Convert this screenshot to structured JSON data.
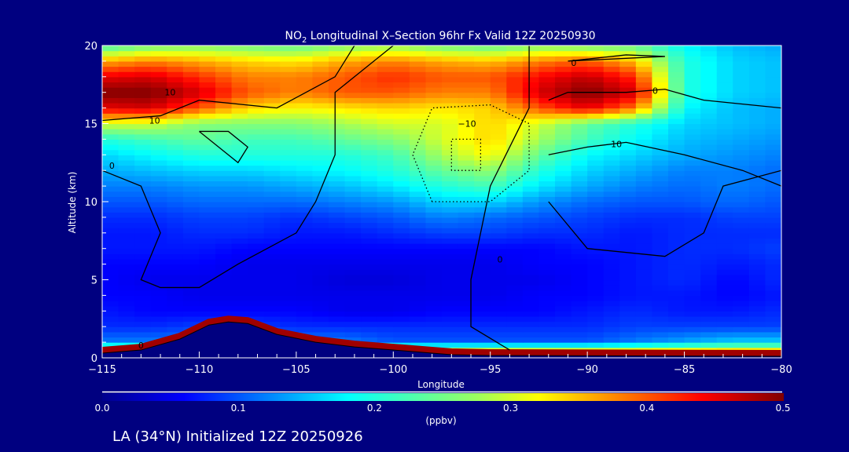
{
  "chart_data": {
    "type": "heatmap",
    "title_main": "NO",
    "title_sub": "2",
    "title_rest": " Longitudinal X–Section 96hr  Fx Valid 12Z 20250930",
    "xlabel": "Longitude",
    "ylabel": "Altitude (km)",
    "xlim": [
      -115,
      -80
    ],
    "ylim": [
      0,
      20
    ],
    "xticks": [
      -115,
      -110,
      -105,
      -100,
      -95,
      -90,
      -85,
      -80
    ],
    "xtick_labels": [
      "−115",
      "−110",
      "−105",
      "−100",
      "−95",
      "−90",
      "−85",
      "−80"
    ],
    "yticks": [
      0,
      5,
      10,
      15,
      20
    ],
    "ytick_labels": [
      "0",
      "5",
      "10",
      "15",
      "20"
    ],
    "x": [
      -115,
      -112.5,
      -110,
      -107.5,
      -105,
      -102.5,
      -100,
      -97.5,
      -95,
      -92.5,
      -90,
      -87.5,
      -85,
      -82.5,
      -80
    ],
    "y": [
      0,
      1,
      2,
      3,
      4,
      5,
      6,
      7,
      8,
      9,
      10,
      11,
      12,
      13,
      14,
      15,
      16,
      17,
      18,
      19,
      20
    ],
    "values": [
      [
        0.5,
        0.5,
        0.5,
        0.5,
        0.5,
        0.5,
        0.5,
        0.5,
        0.5,
        0.5,
        0.5,
        0.5,
        0.5,
        0.5,
        0.5
      ],
      [
        0.12,
        0.12,
        0.12,
        0.12,
        0.12,
        0.12,
        0.1,
        0.1,
        0.1,
        0.1,
        0.1,
        0.12,
        0.14,
        0.16,
        0.16
      ],
      [
        0.08,
        0.08,
        0.09,
        0.09,
        0.08,
        0.08,
        0.08,
        0.08,
        0.08,
        0.08,
        0.08,
        0.09,
        0.09,
        0.09,
        0.09
      ],
      [
        0.07,
        0.06,
        0.06,
        0.06,
        0.06,
        0.05,
        0.05,
        0.06,
        0.06,
        0.06,
        0.07,
        0.08,
        0.07,
        0.07,
        0.08
      ],
      [
        0.06,
        0.06,
        0.05,
        0.05,
        0.05,
        0.05,
        0.05,
        0.05,
        0.05,
        0.06,
        0.06,
        0.07,
        0.07,
        0.06,
        0.07
      ],
      [
        0.06,
        0.05,
        0.05,
        0.05,
        0.05,
        0.04,
        0.04,
        0.05,
        0.05,
        0.05,
        0.06,
        0.07,
        0.08,
        0.06,
        0.08
      ],
      [
        0.06,
        0.06,
        0.06,
        0.05,
        0.05,
        0.05,
        0.05,
        0.05,
        0.05,
        0.06,
        0.06,
        0.07,
        0.08,
        0.07,
        0.08
      ],
      [
        0.07,
        0.07,
        0.07,
        0.06,
        0.06,
        0.06,
        0.06,
        0.06,
        0.06,
        0.06,
        0.07,
        0.07,
        0.08,
        0.08,
        0.09
      ],
      [
        0.07,
        0.07,
        0.08,
        0.08,
        0.07,
        0.07,
        0.08,
        0.09,
        0.09,
        0.08,
        0.08,
        0.07,
        0.08,
        0.08,
        0.08
      ],
      [
        0.08,
        0.08,
        0.09,
        0.09,
        0.08,
        0.09,
        0.1,
        0.12,
        0.11,
        0.1,
        0.09,
        0.08,
        0.08,
        0.09,
        0.09
      ],
      [
        0.1,
        0.1,
        0.11,
        0.11,
        0.11,
        0.12,
        0.13,
        0.16,
        0.16,
        0.13,
        0.11,
        0.1,
        0.1,
        0.11,
        0.1
      ],
      [
        0.12,
        0.12,
        0.13,
        0.13,
        0.14,
        0.15,
        0.17,
        0.2,
        0.22,
        0.17,
        0.14,
        0.12,
        0.11,
        0.12,
        0.11
      ],
      [
        0.14,
        0.15,
        0.16,
        0.16,
        0.17,
        0.18,
        0.2,
        0.24,
        0.27,
        0.2,
        0.16,
        0.14,
        0.12,
        0.12,
        0.11
      ],
      [
        0.16,
        0.18,
        0.2,
        0.2,
        0.2,
        0.2,
        0.22,
        0.28,
        0.32,
        0.24,
        0.18,
        0.16,
        0.14,
        0.13,
        0.12
      ],
      [
        0.2,
        0.22,
        0.24,
        0.22,
        0.22,
        0.24,
        0.26,
        0.3,
        0.34,
        0.28,
        0.22,
        0.18,
        0.15,
        0.14,
        0.13
      ],
      [
        0.3,
        0.3,
        0.26,
        0.26,
        0.26,
        0.28,
        0.3,
        0.3,
        0.34,
        0.3,
        0.24,
        0.2,
        0.16,
        0.15,
        0.14
      ],
      [
        0.45,
        0.46,
        0.4,
        0.34,
        0.32,
        0.33,
        0.34,
        0.33,
        0.34,
        0.4,
        0.45,
        0.38,
        0.18,
        0.15,
        0.14
      ],
      [
        0.5,
        0.5,
        0.46,
        0.4,
        0.38,
        0.4,
        0.4,
        0.38,
        0.38,
        0.46,
        0.5,
        0.46,
        0.2,
        0.16,
        0.15
      ],
      [
        0.45,
        0.46,
        0.42,
        0.38,
        0.38,
        0.4,
        0.42,
        0.4,
        0.4,
        0.44,
        0.47,
        0.42,
        0.2,
        0.16,
        0.15
      ],
      [
        0.36,
        0.38,
        0.36,
        0.34,
        0.33,
        0.36,
        0.38,
        0.36,
        0.35,
        0.38,
        0.4,
        0.35,
        0.2,
        0.16,
        0.15
      ],
      [
        0.22,
        0.25,
        0.26,
        0.25,
        0.24,
        0.26,
        0.27,
        0.25,
        0.24,
        0.26,
        0.25,
        0.24,
        0.18,
        0.15,
        0.14
      ]
    ],
    "terrain": [
      [
        -115,
        0.3
      ],
      [
        -113,
        0.5
      ],
      [
        -111,
        1.2
      ],
      [
        -109.5,
        2.1
      ],
      [
        -108.5,
        2.3
      ],
      [
        -107.5,
        2.2
      ],
      [
        -106,
        1.5
      ],
      [
        -104,
        1.0
      ],
      [
        -102,
        0.7
      ],
      [
        -100,
        0.5
      ],
      [
        -97,
        0.2
      ],
      [
        -95,
        0.15
      ],
      [
        -80,
        0.1
      ]
    ],
    "contours": [
      {
        "level": 0,
        "style": "solid",
        "points": [
          [
            -115,
            12
          ],
          [
            -113,
            11
          ],
          [
            -112,
            8
          ],
          [
            -113,
            5
          ],
          [
            -112,
            4.5
          ],
          [
            -110,
            4.5
          ],
          [
            -108,
            6
          ],
          [
            -105,
            8
          ],
          [
            -104,
            10
          ],
          [
            -103,
            13
          ],
          [
            -103,
            17
          ],
          [
            -101,
            19
          ],
          [
            -100,
            20
          ]
        ]
      },
      {
        "level": 10,
        "style": "solid",
        "points": [
          [
            -115,
            15.2
          ],
          [
            -112,
            15.5
          ],
          [
            -110,
            16.5
          ],
          [
            -106,
            16
          ],
          [
            -103,
            18
          ],
          [
            -102,
            20
          ]
        ]
      },
      {
        "level": 10,
        "style": "solid",
        "points": [
          [
            -110,
            14.5
          ],
          [
            -109,
            13.5
          ],
          [
            -108,
            12.5
          ],
          [
            -107.5,
            13.5
          ],
          [
            -108.5,
            14.5
          ],
          [
            -110,
            14.5
          ]
        ]
      },
      {
        "level": -10,
        "style": "dotted",
        "points": [
          [
            -98,
            10
          ],
          [
            -99,
            13
          ],
          [
            -98,
            16
          ],
          [
            -95,
            16.2
          ],
          [
            -93,
            15
          ],
          [
            -93,
            12
          ],
          [
            -95,
            10
          ],
          [
            -98,
            10
          ]
        ]
      },
      {
        "level": -10,
        "style": "dotted",
        "points": [
          [
            -97,
            12
          ],
          [
            -97,
            14
          ],
          [
            -95.5,
            14
          ],
          [
            -95.5,
            12
          ],
          [
            -97,
            12
          ]
        ]
      },
      {
        "level": 0,
        "style": "solid",
        "points": [
          [
            -93,
            20
          ],
          [
            -93,
            16
          ],
          [
            -95,
            11
          ],
          [
            -96,
            5
          ],
          [
            -96,
            2
          ],
          [
            -94,
            0.5
          ]
        ]
      },
      {
        "level": 0,
        "style": "solid",
        "points": [
          [
            -92,
            16.5
          ],
          [
            -91,
            17
          ],
          [
            -88,
            17
          ],
          [
            -86,
            17.2
          ],
          [
            -84,
            16.5
          ],
          [
            -80,
            16
          ]
        ]
      },
      {
        "level": 10,
        "style": "solid",
        "points": [
          [
            -92,
            13
          ],
          [
            -90,
            13.5
          ],
          [
            -88,
            13.8
          ],
          [
            -85,
            13
          ],
          [
            -82,
            12
          ],
          [
            -80,
            11
          ]
        ]
      },
      {
        "level": 0,
        "style": "solid",
        "points": [
          [
            -91,
            19
          ],
          [
            -88,
            19.4
          ],
          [
            -86,
            19.3
          ],
          [
            -91,
            19
          ]
        ]
      },
      {
        "level": 0,
        "style": "solid",
        "points": [
          [
            -92,
            10
          ],
          [
            -90,
            7
          ],
          [
            -86,
            6.5
          ],
          [
            -84,
            8
          ],
          [
            -83,
            11
          ],
          [
            -80,
            12
          ]
        ]
      }
    ],
    "contour_labels": [
      {
        "text": "10",
        "x": -111.5,
        "y": 17.0
      },
      {
        "text": "10",
        "x": -112.3,
        "y": 15.2
      },
      {
        "text": "0",
        "x": -114.5,
        "y": 12.3
      },
      {
        "text": "−10",
        "x": -96.2,
        "y": 15.0
      },
      {
        "text": "0",
        "x": -86.5,
        "y": 17.1
      },
      {
        "text": "10",
        "x": -88.5,
        "y": 13.7
      },
      {
        "text": "0",
        "x": -90.7,
        "y": 18.9
      },
      {
        "text": "0",
        "x": -113,
        "y": 0.8
      },
      {
        "text": "0",
        "x": -94.5,
        "y": 6.3
      }
    ],
    "colorbar": {
      "min": 0.0,
      "max": 0.5,
      "tick_labels": [
        "0.0",
        "0.1",
        "0.2",
        "0.3",
        "0.4",
        "0.5"
      ],
      "label": "(ppbv)"
    }
  },
  "footer": "LA (34°N) Initialized 12Z 20250926",
  "colors": {
    "background": "#000080",
    "contour": "#000000"
  }
}
